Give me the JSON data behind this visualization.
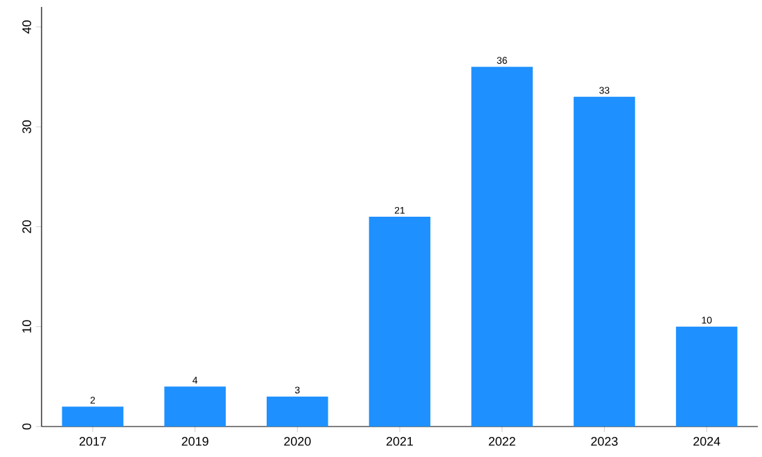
{
  "chart_data": {
    "type": "bar",
    "categories": [
      "2017",
      "2019",
      "2020",
      "2021",
      "2022",
      "2023",
      "2024"
    ],
    "values": [
      2,
      4,
      3,
      21,
      36,
      33,
      10
    ],
    "color": "#1e90ff",
    "ylim": [
      0,
      42
    ],
    "yticks": [
      0,
      10,
      20,
      30,
      40
    ],
    "data_labels": true,
    "grid": false
  }
}
